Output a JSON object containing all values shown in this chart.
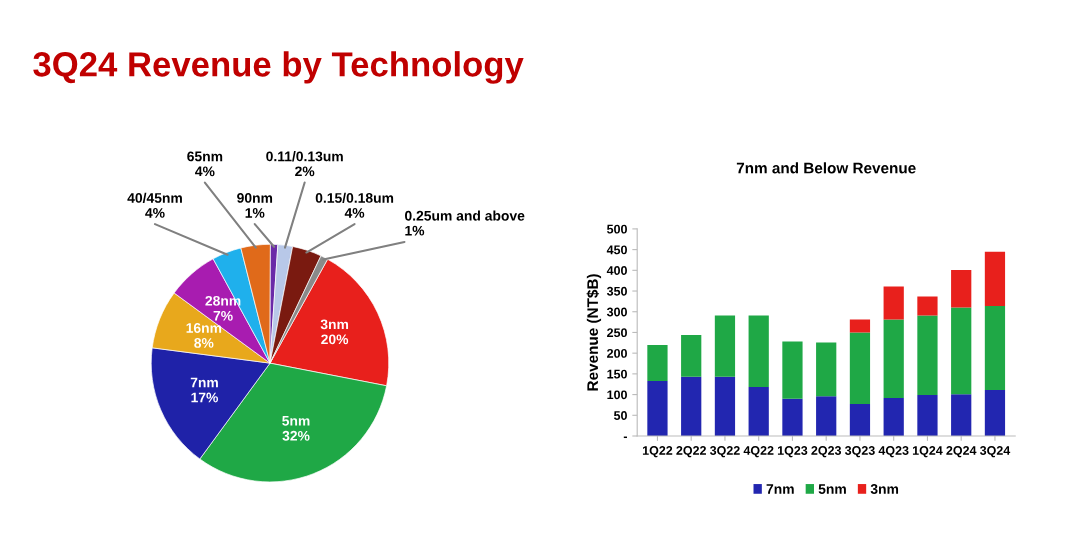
{
  "chart_data": [
    {
      "type": "pie",
      "title": "3Q24 Revenue by Technology",
      "categories": [
        "3nm",
        "5nm",
        "7nm",
        "16nm",
        "28nm",
        "40/45nm",
        "65nm",
        "90nm",
        "0.11/0.13um",
        "0.15/0.18um",
        "0.25um and above"
      ],
      "values": [
        20,
        32,
        17,
        8,
        7,
        4,
        4,
        1,
        2,
        4,
        1
      ],
      "colors": [
        "#e8201c",
        "#1fa846",
        "#1f22a8",
        "#e8a81c",
        "#a81cb0",
        "#1fb0ec",
        "#e06a1a",
        "#6a2aa8",
        "#b8c8e8",
        "#7a1a10",
        "#8a8a8a"
      ],
      "value_labels": [
        "20%",
        "32%",
        "17%",
        "8%",
        "7%",
        "4%",
        "4%",
        "1%",
        "2%",
        "4%",
        "1%"
      ]
    },
    {
      "type": "bar",
      "title": "7nm and Below Revenue",
      "ylabel": "Revenue (NT$B)",
      "stacked": true,
      "categories": [
        "1Q22",
        "2Q22",
        "3Q22",
        "4Q22",
        "1Q23",
        "2Q23",
        "3Q23",
        "4Q23",
        "1Q24",
        "2Q24",
        "3Q24"
      ],
      "series": [
        {
          "name": "7nm",
          "color": "#2226b0",
          "values": [
            133,
            143,
            143,
            118,
            90,
            96,
            77,
            92,
            99,
            101,
            111
          ]
        },
        {
          "name": "5nm",
          "color": "#1fa846",
          "values": [
            87,
            101,
            148,
            173,
            138,
            130,
            173,
            189,
            192,
            209,
            203
          ]
        },
        {
          "name": "3nm",
          "color": "#e8201c",
          "values": [
            null,
            null,
            null,
            null,
            null,
            null,
            31,
            80,
            46,
            91,
            131
          ]
        }
      ],
      "ylim": [
        0,
        500
      ],
      "yticks": [
        {
          "value": 0,
          "label": "-"
        },
        50,
        100,
        150,
        200,
        250,
        300,
        350,
        400,
        450,
        500
      ],
      "legend": "bottom",
      "grid": false
    }
  ]
}
